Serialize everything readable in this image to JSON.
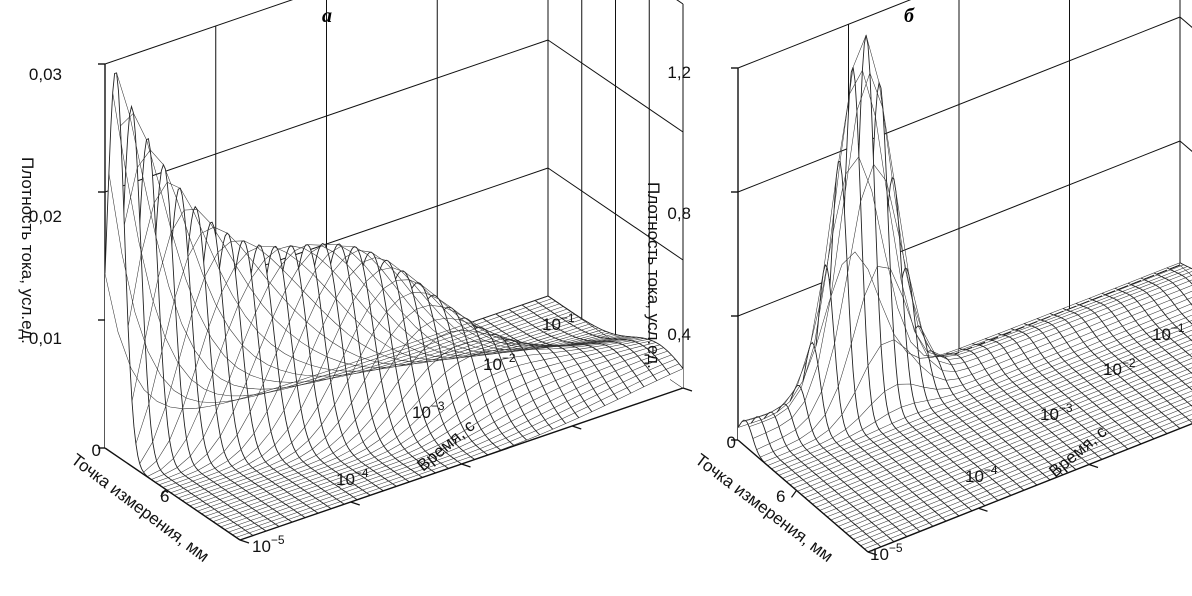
{
  "chart_data": [
    {
      "type": "surface",
      "panel_label": "а",
      "zlabel": "Плотность тока, усл.ед.",
      "xlabel": "Точка измерения, мм",
      "ylabel": "Время, с",
      "z_ticks": [
        "0",
        "0,01",
        "0,02",
        "0,03"
      ],
      "zlim": [
        0,
        0.03
      ],
      "x_ticks": [
        "6"
      ],
      "y_ticks": [
        {
          "base": "10",
          "exp": "−5"
        },
        {
          "base": "10",
          "exp": "−4"
        },
        {
          "base": "10",
          "exp": "−3"
        },
        {
          "base": "10",
          "exp": "−2"
        },
        {
          "base": "10",
          "exp": "−1"
        }
      ],
      "grid": true,
      "time_s": [
        1e-05,
        0.0001,
        0.001,
        0.01,
        0.1
      ],
      "peak_current_by_time": [
        0.028,
        0.015,
        0.008,
        0.006,
        0.003
      ]
    },
    {
      "type": "surface",
      "panel_label": "б",
      "zlabel": "Плотность тока, усл.ед.",
      "xlabel": "Точка измерения, мм",
      "ylabel": "Время, с",
      "z_ticks": [
        "0",
        "0,4",
        "0,8",
        "1,2"
      ],
      "zlim": [
        0,
        1.2
      ],
      "x_ticks": [
        "6"
      ],
      "y_ticks": [
        {
          "base": "10",
          "exp": "−5"
        },
        {
          "base": "10",
          "exp": "−4"
        },
        {
          "base": "10",
          "exp": "−3"
        },
        {
          "base": "10",
          "exp": "−2"
        },
        {
          "base": "10",
          "exp": "−1"
        }
      ],
      "grid": true,
      "time_s": [
        1e-05,
        0.0001,
        0.001,
        0.01,
        0.1
      ],
      "peak_current_by_time": [
        0.05,
        0.35,
        1.15,
        0.05,
        0.03
      ]
    }
  ]
}
